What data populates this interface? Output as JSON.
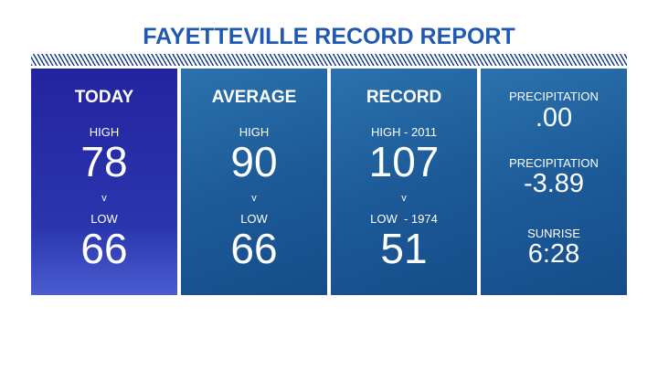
{
  "header": {
    "title": "FAYETTEVILLE RECORD REPORT"
  },
  "panels": [
    {
      "heading": "TODAY",
      "high_label": "HIGH",
      "high": 78,
      "separator": "v",
      "low_label": "LOW",
      "low": 66
    },
    {
      "heading": "AVERAGE",
      "high_label": "HIGH",
      "high": 90,
      "separator": "v",
      "low_label": "LOW",
      "low": 66
    },
    {
      "heading": "RECORD",
      "high_label": "HIGH - 2011",
      "high": 107,
      "separator": "v",
      "low_label": "LOW  - 1974",
      "low": 51
    }
  ],
  "details": [
    {
      "label": "PRECIPITATION",
      "value": ".00"
    },
    {
      "label": "PRECIPITATION",
      "value": -3.89
    },
    {
      "label": "SUNRISE",
      "value": "6:28"
    }
  ]
}
